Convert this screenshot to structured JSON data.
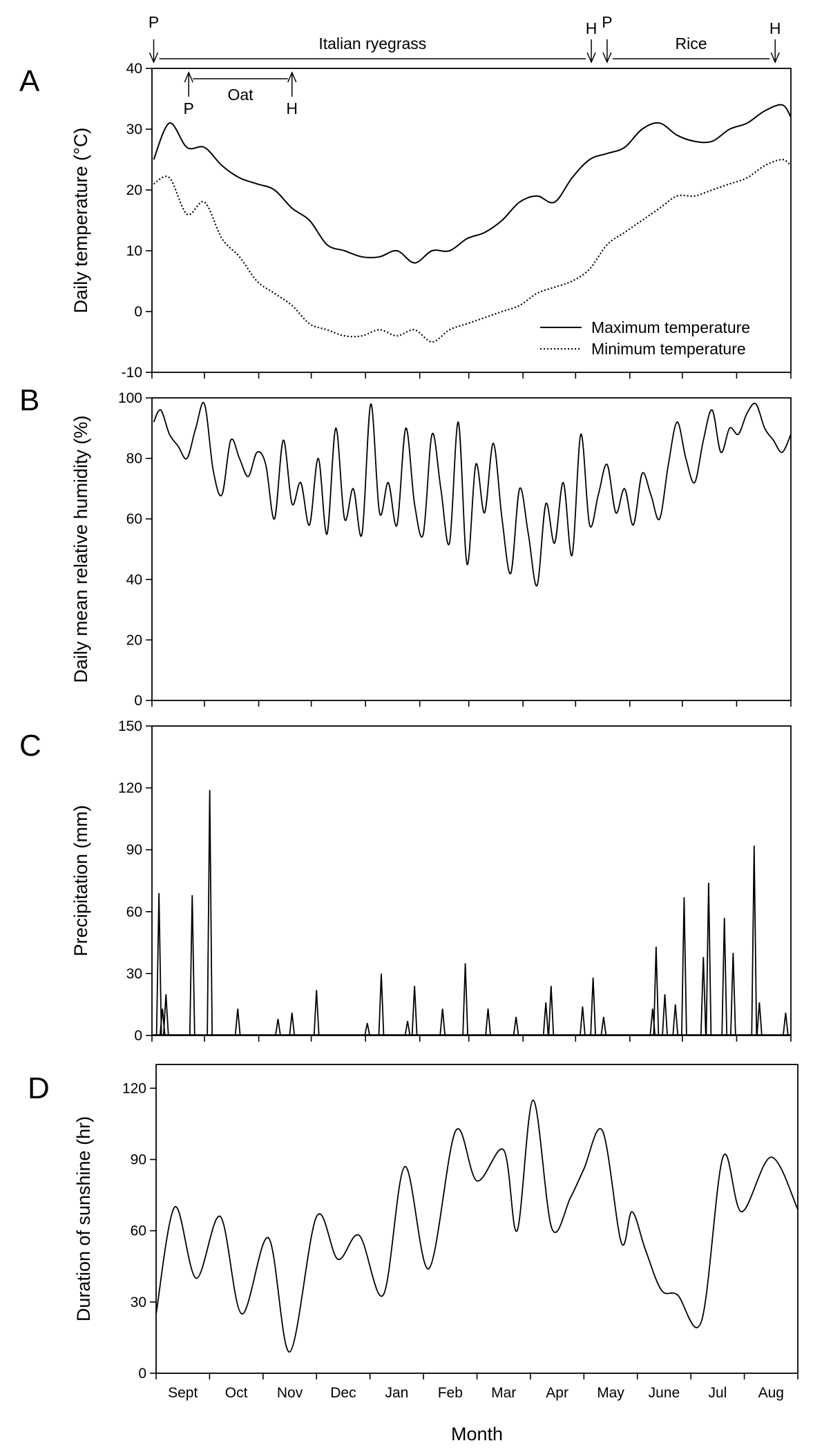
{
  "chart_data": [
    {
      "type": "line",
      "panel_label": "A",
      "ylabel": "Daily temperature (°C)",
      "ylim": [
        -10,
        40
      ],
      "yticks": [
        -10,
        0,
        10,
        20,
        30,
        40
      ],
      "x_unit": "day",
      "xlim": [
        0,
        365
      ],
      "legend_position": "bottom-right",
      "crop_annotations": [
        {
          "name": "Italian ryegrass",
          "start_label": "P",
          "end_label": "H",
          "start_day": 1,
          "end_day": 251
        },
        {
          "name": "Oat",
          "start_label": "P",
          "end_label": "H",
          "start_day": 21,
          "end_day": 80
        },
        {
          "name": "Rice",
          "start_label": "P",
          "end_label": "H",
          "start_day": 260,
          "end_day": 356
        }
      ],
      "series": [
        {
          "name": "Maximum temperature",
          "style": "solid",
          "x": [
            1,
            10,
            20,
            30,
            40,
            50,
            60,
            70,
            80,
            90,
            100,
            110,
            120,
            130,
            140,
            150,
            160,
            170,
            180,
            190,
            200,
            210,
            220,
            230,
            240,
            250,
            260,
            270,
            280,
            290,
            300,
            310,
            320,
            330,
            340,
            350,
            360,
            365
          ],
          "y": [
            25,
            31,
            27,
            27,
            24,
            22,
            21,
            20,
            17,
            15,
            11,
            10,
            9,
            9,
            10,
            8,
            10,
            10,
            12,
            13,
            15,
            18,
            19,
            18,
            22,
            25,
            26,
            27,
            30,
            31,
            29,
            28,
            28,
            30,
            31,
            33,
            34,
            32
          ]
        },
        {
          "name": "Minimum temperature",
          "style": "dotted",
          "x": [
            1,
            10,
            20,
            30,
            40,
            50,
            60,
            70,
            80,
            90,
            100,
            110,
            120,
            130,
            140,
            150,
            160,
            170,
            180,
            190,
            200,
            210,
            220,
            230,
            240,
            250,
            260,
            270,
            280,
            290,
            300,
            310,
            320,
            330,
            340,
            350,
            360,
            365
          ],
          "y": [
            21,
            22,
            16,
            18,
            12,
            9,
            5,
            3,
            1,
            -2,
            -3,
            -4,
            -4,
            -3,
            -4,
            -3,
            -5,
            -3,
            -2,
            -1,
            0,
            1,
            3,
            4,
            5,
            7,
            11,
            13,
            15,
            17,
            19,
            19,
            20,
            21,
            22,
            24,
            25,
            24
          ]
        }
      ]
    },
    {
      "type": "line",
      "panel_label": "B",
      "ylabel": "Daily mean relative humidity (%)",
      "ylim": [
        0,
        100
      ],
      "yticks": [
        0,
        20,
        40,
        60,
        80,
        100
      ],
      "x_unit": "day",
      "xlim": [
        0,
        365
      ],
      "series": [
        {
          "x": [
            1,
            5,
            10,
            15,
            20,
            25,
            30,
            35,
            40,
            45,
            50,
            55,
            60,
            65,
            70,
            75,
            80,
            85,
            90,
            95,
            100,
            105,
            110,
            115,
            120,
            125,
            130,
            135,
            140,
            145,
            150,
            155,
            160,
            165,
            170,
            175,
            180,
            185,
            190,
            195,
            200,
            205,
            210,
            215,
            220,
            225,
            230,
            235,
            240,
            245,
            250,
            255,
            260,
            265,
            270,
            275,
            280,
            285,
            290,
            295,
            300,
            305,
            310,
            315,
            320,
            325,
            330,
            335,
            340,
            345,
            350,
            355,
            360,
            365
          ],
          "y": [
            92,
            96,
            88,
            84,
            80,
            90,
            98,
            76,
            68,
            86,
            80,
            74,
            82,
            78,
            60,
            86,
            65,
            72,
            58,
            80,
            55,
            90,
            60,
            70,
            55,
            98,
            62,
            72,
            58,
            90,
            65,
            55,
            88,
            70,
            52,
            92,
            45,
            78,
            62,
            85,
            60,
            42,
            70,
            55,
            38,
            65,
            52,
            72,
            48,
            88,
            58,
            68,
            78,
            62,
            70,
            58,
            75,
            68,
            60,
            78,
            92,
            80,
            72,
            86,
            96,
            82,
            90,
            88,
            95,
            98,
            90,
            86,
            82,
            88
          ]
        }
      ]
    },
    {
      "type": "line",
      "panel_label": "C",
      "ylabel": "Precipitation (mm)",
      "ylim": [
        0,
        150
      ],
      "yticks": [
        0,
        30,
        60,
        90,
        120,
        150
      ],
      "x_unit": "day",
      "xlim": [
        0,
        365
      ],
      "series": [
        {
          "events": [
            {
              "day": 4,
              "mm": 69
            },
            {
              "day": 6,
              "mm": 13
            },
            {
              "day": 8,
              "mm": 20
            },
            {
              "day": 23,
              "mm": 68
            },
            {
              "day": 33,
              "mm": 119
            },
            {
              "day": 49,
              "mm": 13
            },
            {
              "day": 72,
              "mm": 8
            },
            {
              "day": 80,
              "mm": 11
            },
            {
              "day": 94,
              "mm": 22
            },
            {
              "day": 123,
              "mm": 6
            },
            {
              "day": 131,
              "mm": 30
            },
            {
              "day": 146,
              "mm": 7
            },
            {
              "day": 150,
              "mm": 24
            },
            {
              "day": 166,
              "mm": 13
            },
            {
              "day": 179,
              "mm": 35
            },
            {
              "day": 192,
              "mm": 13
            },
            {
              "day": 208,
              "mm": 9
            },
            {
              "day": 225,
              "mm": 16
            },
            {
              "day": 228,
              "mm": 24
            },
            {
              "day": 246,
              "mm": 14
            },
            {
              "day": 252,
              "mm": 28
            },
            {
              "day": 258,
              "mm": 9
            },
            {
              "day": 286,
              "mm": 13
            },
            {
              "day": 288,
              "mm": 43
            },
            {
              "day": 293,
              "mm": 20
            },
            {
              "day": 299,
              "mm": 15
            },
            {
              "day": 304,
              "mm": 67
            },
            {
              "day": 315,
              "mm": 38
            },
            {
              "day": 318,
              "mm": 74
            },
            {
              "day": 327,
              "mm": 57
            },
            {
              "day": 332,
              "mm": 40
            },
            {
              "day": 344,
              "mm": 92
            },
            {
              "day": 347,
              "mm": 16
            },
            {
              "day": 362,
              "mm": 11
            }
          ]
        }
      ]
    },
    {
      "type": "line",
      "panel_label": "D",
      "ylabel": "Duration of sunshine (hr)",
      "xlabel": "Month",
      "ylim": [
        0,
        130
      ],
      "yticks": [
        0,
        30,
        60,
        90,
        120
      ],
      "categories": [
        "Sept",
        "Oct",
        "Nov",
        "Dec",
        "Jan",
        "Feb",
        "Mar",
        "Apr",
        "May",
        "June",
        "Jul",
        "Aug"
      ],
      "x_unit": "month",
      "xlim": [
        0,
        12
      ],
      "series": [
        {
          "x": [
            0,
            0.35,
            0.75,
            1.2,
            1.6,
            2.1,
            2.5,
            3.0,
            3.4,
            3.8,
            4.25,
            4.65,
            5.1,
            5.6,
            6.0,
            6.5,
            6.75,
            7.05,
            7.4,
            7.75,
            8.0,
            8.35,
            8.7,
            8.9,
            9.15,
            9.45,
            9.75,
            10.2,
            10.6,
            10.95,
            11.5,
            12.0
          ],
          "y": [
            25,
            70,
            40,
            66,
            25,
            57,
            9,
            66,
            48,
            58,
            33,
            87,
            44,
            102,
            81,
            94,
            60,
            115,
            61,
            74,
            86,
            102,
            55,
            68,
            52,
            35,
            33,
            22,
            91,
            68,
            91,
            69
          ]
        }
      ]
    }
  ]
}
